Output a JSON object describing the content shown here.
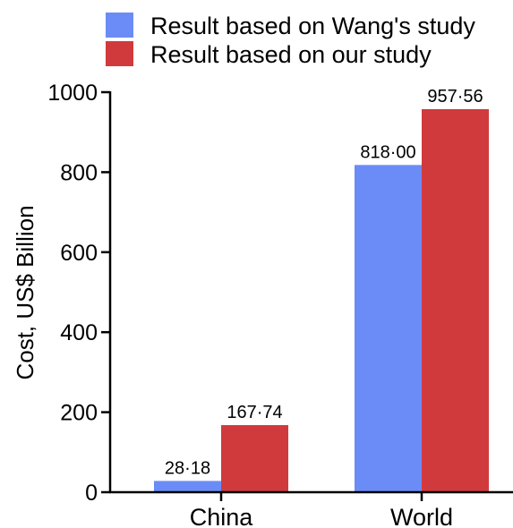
{
  "chart_data": {
    "type": "bar",
    "categories": [
      "China",
      "World"
    ],
    "series": [
      {
        "name": "Result based on Wang's study",
        "color": "#6b8cf6",
        "values": [
          28.18,
          818.0
        ],
        "labels": [
          "28·18",
          "818·00"
        ]
      },
      {
        "name": "Result based on our study",
        "color": "#d13a3d",
        "values": [
          167.74,
          957.56
        ],
        "labels": [
          "167·74",
          "957·56"
        ]
      }
    ],
    "xlabel": "",
    "ylabel": "Cost, US$ Billion",
    "ylim": [
      0,
      1000
    ],
    "yticks": [
      0,
      200,
      400,
      600,
      800,
      1000
    ],
    "grid": false,
    "legend_position": "top"
  }
}
